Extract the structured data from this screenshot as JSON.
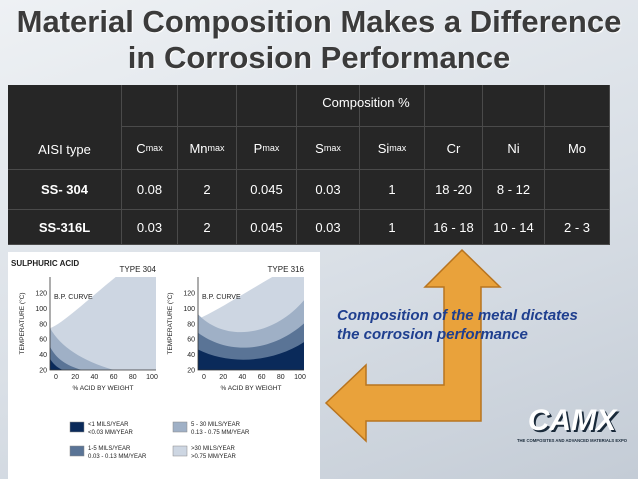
{
  "title": [
    "Material Composition Makes a Difference",
    "in Corrosion Performance"
  ],
  "table": {
    "row_header": "AISI type",
    "group_header": "Composition %",
    "columns": [
      {
        "base": "C",
        "sub": "max"
      },
      {
        "base": "Mn",
        "sub": "max"
      },
      {
        "base": "P",
        "sub": "max"
      },
      {
        "base": "S",
        "sub": "max"
      },
      {
        "base": "Si",
        "sub": "max"
      },
      {
        "base": "Cr"
      },
      {
        "base": "Ni"
      },
      {
        "base": "Mo"
      }
    ],
    "rows": [
      {
        "name": "SS- 304",
        "values": [
          "0.08",
          "2",
          "0.045",
          "0.03",
          "1",
          "18 -20",
          "8 - 12"
        ]
      },
      {
        "name": "SS-316L",
        "values": [
          "0.03",
          "2",
          "0.045",
          "0.03",
          "1",
          "16 - 18",
          "10 - 14",
          "2 - 3"
        ]
      }
    ]
  },
  "figure": {
    "heading": "SULPHURIC ACID",
    "panels": [
      {
        "title": "TYPE 304",
        "curve": "B.P. CURVE"
      },
      {
        "title": "TYPE 316",
        "curve": "B.P. CURVE"
      }
    ],
    "y_label": "TEMPERATURE (°C)",
    "x_label": "% ACID BY WEIGHT",
    "yticks": [
      "120",
      "100",
      "80",
      "60",
      "40",
      "20"
    ],
    "xticks": [
      "0",
      "20",
      "40",
      "60",
      "80",
      "100"
    ],
    "legend": [
      {
        "line1": "<1 MILS/YEAR",
        "line2": "<0.03 MM/YEAR"
      },
      {
        "line1": "5 - 30 MILS/YEAR",
        "line2": "0.13 - 0.75 MM/YEAR"
      },
      {
        "line1": "1-5 MILS/YEAR",
        "line2": "0.03 - 0.13 MM/YEAR"
      },
      {
        "line1": ">30 MILS/YEAR",
        "line2": ">0.75 MM/YEAR"
      }
    ]
  },
  "annotation": [
    "Composition of the metal dictates",
    "the corrosion performance"
  ],
  "logo": {
    "name": "CAMX",
    "tagline": "THE COMPOSITES AND ADVANCED MATERIALS EXPO"
  }
}
